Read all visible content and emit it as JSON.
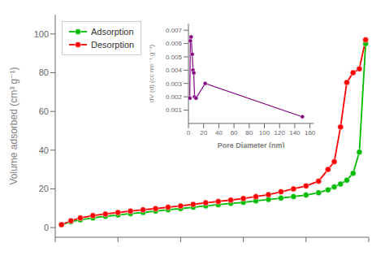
{
  "chart_data": [
    {
      "type": "line",
      "ylabel": "Volume adsorbed (cm³ g⁻¹)",
      "x": [
        0.02,
        0.05,
        0.08,
        0.12,
        0.16,
        0.2,
        0.24,
        0.28,
        0.32,
        0.36,
        0.4,
        0.44,
        0.48,
        0.52,
        0.56,
        0.6,
        0.64,
        0.68,
        0.72,
        0.76,
        0.8,
        0.84,
        0.87,
        0.89,
        0.91,
        0.93,
        0.95,
        0.97,
        0.99
      ],
      "series": [
        {
          "name": "Adsorption",
          "color": "#00bb00",
          "marker": "circle",
          "values": [
            1.5,
            3.0,
            4.0,
            5.0,
            5.8,
            6.5,
            7.2,
            7.8,
            8.5,
            9.2,
            9.8,
            10.5,
            11.2,
            11.8,
            12.5,
            13.0,
            13.8,
            14.5,
            15.2,
            16.0,
            16.8,
            18.0,
            19.5,
            21.0,
            22.5,
            24.5,
            28.0,
            39.0,
            95.0
          ]
        },
        {
          "name": "Desorption",
          "color": "#ff0000",
          "marker": "circle",
          "values": [
            1.5,
            3.5,
            5.0,
            6.2,
            7.0,
            7.8,
            8.5,
            9.2,
            9.8,
            10.5,
            11.2,
            12.0,
            12.8,
            13.5,
            14.2,
            15.0,
            16.0,
            17.0,
            18.5,
            20.0,
            21.5,
            24.0,
            30.0,
            34.0,
            52.0,
            75.0,
            80.0,
            82.0,
            97.0
          ]
        }
      ],
      "xlim": [
        0.0,
        1.0
      ],
      "xticks": [
        0,
        0.2,
        0.4,
        0.6,
        0.8,
        1.0
      ],
      "ylim": [
        -5,
        110
      ],
      "yticks": [
        0,
        20,
        40,
        60,
        80,
        100
      ],
      "tick_labels": "y",
      "legend": "upper left",
      "grid": false
    },
    {
      "type": "line",
      "xlabel": "Pore Diameter (nm)",
      "ylabel": "dV (d) (cc nm⁻¹ g⁻¹)",
      "x": [
        1.8,
        2.5,
        3.5,
        5.0,
        6.0,
        7.0,
        8.0,
        10.0,
        22.0,
        150.0
      ],
      "values": [
        0.0019,
        0.0062,
        0.0065,
        0.0052,
        0.004,
        0.0038,
        0.002,
        0.0019,
        0.003,
        0.0005
      ],
      "color": "#800080",
      "marker": "circle",
      "xlim": [
        0,
        165
      ],
      "xticks": [
        0,
        20,
        40,
        60,
        80,
        100,
        120,
        140,
        160
      ],
      "ylim": [
        0.0,
        0.0075
      ],
      "yticks": [
        0.001,
        0.002,
        0.003,
        0.004,
        0.005,
        0.006,
        0.007
      ],
      "grid": false
    }
  ]
}
